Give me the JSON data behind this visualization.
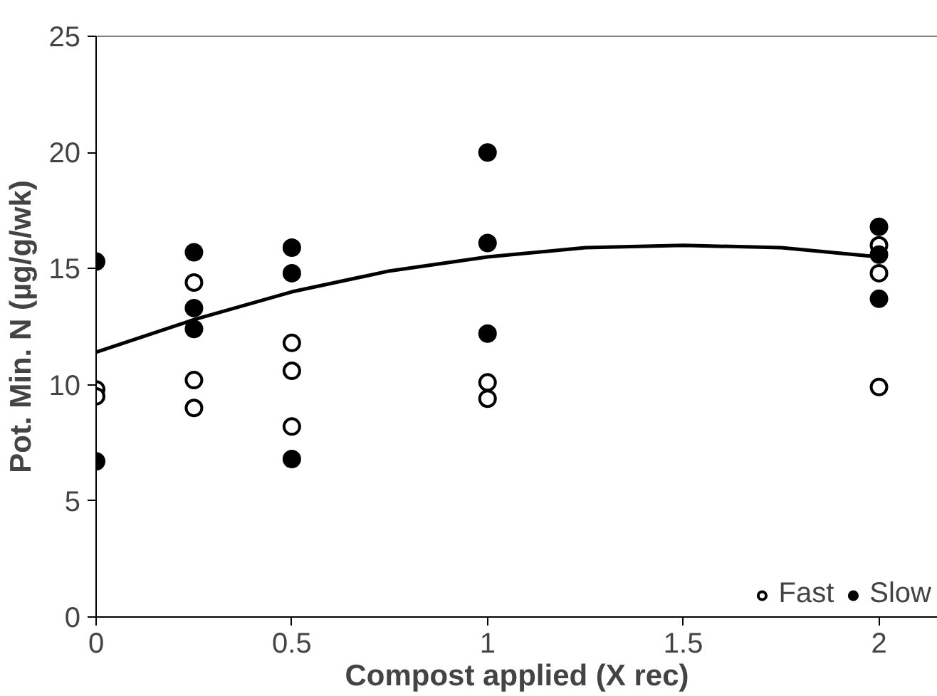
{
  "chart_data": {
    "type": "scatter",
    "xlabel": "Compost applied (X rec)",
    "ylabel": "Pot. Min. N (µg/g/wk)",
    "xlim": [
      0,
      2.15
    ],
    "xticks": [
      0,
      0.5,
      1,
      1.5,
      2
    ],
    "ylim": [
      0,
      25
    ],
    "yticks": [
      0,
      5,
      10,
      15,
      20,
      25
    ],
    "grid": false,
    "legend": "bottom right",
    "marker": "circle",
    "series": [
      {
        "name": "Fast",
        "color": "#ffffff",
        "x": [
          0,
          0,
          0.25,
          0.25,
          0.25,
          0.5,
          0.5,
          0.5,
          1,
          1,
          2,
          2,
          2
        ],
        "values": [
          9.8,
          9.5,
          14.4,
          10.2,
          9.0,
          11.8,
          10.6,
          8.2,
          10.1,
          9.4,
          16.0,
          14.8,
          9.9
        ]
      },
      {
        "name": "Slow",
        "color": "#000000",
        "x": [
          0,
          0,
          0.25,
          0.25,
          0.25,
          0.5,
          0.5,
          0.5,
          1,
          1,
          1,
          2,
          2,
          2
        ],
        "values": [
          15.3,
          6.7,
          15.7,
          13.3,
          12.4,
          15.9,
          14.8,
          6.8,
          20.0,
          16.1,
          12.2,
          16.8,
          15.6,
          13.7
        ]
      },
      {
        "type": "line",
        "color": "#000000",
        "marker": "none",
        "x": [
          0,
          0.25,
          0.5,
          0.75,
          1,
          1.25,
          1.5,
          1.75,
          2
        ],
        "values": [
          11.4,
          12.8,
          14.0,
          14.9,
          15.5,
          15.9,
          16.0,
          15.9,
          15.5
        ]
      }
    ]
  }
}
